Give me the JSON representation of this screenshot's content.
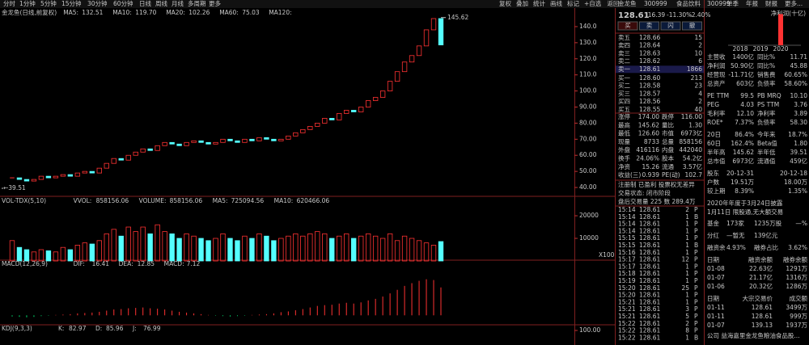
{
  "toolbar": {
    "periods": [
      "分时",
      "1分钟",
      "5分钟",
      "15分钟",
      "30分钟",
      "60分钟",
      "日线",
      "周线",
      "月线",
      "多周期",
      "更多"
    ],
    "tools": [
      "复权",
      "叠加",
      "统计",
      "画线",
      "标记",
      "+自选",
      "返回"
    ]
  },
  "chart_data": [
    {
      "type": "candlestick",
      "title": "金龙鱼(日线,前复权)",
      "indicators": [
        {
          "name": "MA5:",
          "value": "132.51",
          "color": "#e0e0e0"
        },
        {
          "name": "MA10:",
          "value": "119.70",
          "color": "#e8e800"
        },
        {
          "name": "MA20:",
          "value": "102.26",
          "color": "#ff40ff"
        },
        {
          "name": "MA60:",
          "value": "75.03",
          "color": "#00e070"
        },
        {
          "name": "MA120:",
          "value": "",
          "color": "#4080ff"
        }
      ],
      "values": [
        46,
        45,
        44,
        45,
        47,
        46,
        47,
        48,
        47,
        49,
        50,
        49,
        52,
        55,
        58,
        57,
        60,
        62,
        64,
        63,
        66,
        68,
        67,
        66,
        68,
        69,
        68,
        67,
        68,
        70,
        69,
        68,
        70,
        69,
        71,
        70,
        69,
        70,
        72,
        74,
        76,
        78,
        80,
        83,
        82,
        86,
        88,
        87,
        90,
        94,
        96,
        100,
        106,
        112,
        118,
        122,
        128,
        138,
        145,
        128.61
      ],
      "up_color": "#ff3232",
      "down_color": "#54ffff",
      "ylim": [
        35,
        145.5
      ],
      "yticks": [
        {
          "value": 40,
          "label": "40.00"
        },
        {
          "value": 50,
          "label": "50.00"
        },
        {
          "value": 60,
          "label": "60.00"
        },
        {
          "value": 70,
          "label": "70.00"
        },
        {
          "value": 80,
          "label": "80.00"
        },
        {
          "value": 90,
          "label": "90.00"
        },
        {
          "value": 100,
          "label": "100.0"
        },
        {
          "value": 110,
          "label": "110.0"
        },
        {
          "value": 120,
          "label": "120.0"
        },
        {
          "value": 130,
          "label": "130.0"
        },
        {
          "value": 140,
          "label": "140.0"
        }
      ],
      "high": 145.62,
      "low": {
        "value": 39.51,
        "label": "←39.51"
      }
    },
    {
      "type": "bar",
      "title": "VOL-TDX(5,10)",
      "indicators": [
        {
          "name": "VVOL:",
          "value": "858156.06",
          "color": "#e0e0e0"
        },
        {
          "name": "VOLUME:",
          "value": "858156.06",
          "color": "#e8e800"
        },
        {
          "name": "MA5:",
          "value": "725094.56",
          "color": "#e8e800"
        },
        {
          "name": "MA10:",
          "value": "620466.06",
          "color": "#ff40ff"
        }
      ],
      "values": [
        9000,
        6000,
        5000,
        4000,
        5000,
        4500,
        4000,
        6000,
        5000,
        7000,
        8000,
        7500,
        9000,
        12000,
        14000,
        11000,
        15000,
        13000,
        15000,
        12000,
        16000,
        13000,
        12000,
        10000,
        12000,
        11000,
        10000,
        9000,
        10000,
        12000,
        10000,
        9000,
        11000,
        10000,
        12000,
        11000,
        9000,
        10000,
        11000,
        12000,
        11000,
        12000,
        13000,
        12000,
        10000,
        11000,
        12000,
        10000,
        11000,
        12000,
        11000,
        10000,
        12000,
        9000,
        11000,
        10000,
        9000,
        8000,
        7000,
        8581.56
      ],
      "unit": "X100",
      "ylim": [
        0,
        24300
      ],
      "yticks": [
        10000,
        20000
      ]
    },
    {
      "type": "bar",
      "title": "MACD(12,26,9)",
      "indicators": [
        {
          "name": "DIF:",
          "value": "16.41",
          "color": "#e0e0e0"
        },
        {
          "name": "DEA:",
          "value": "12.85",
          "color": "#e8e800"
        },
        {
          "name": "MACD:",
          "value": "7.12",
          "color": "#ff40ff"
        }
      ],
      "values": [
        -0.3,
        -0.4,
        -0.5,
        -0.4,
        -0.2,
        -0.1,
        0.1,
        0.2,
        0.3,
        0.5,
        0.6,
        0.7,
        0.9,
        1.2,
        1.5,
        1.6,
        1.8,
        1.9,
        2.0,
        1.8,
        1.7,
        1.5,
        1.2,
        0.9,
        0.7,
        0.5,
        0.3,
        0.1,
        -0.1,
        -0.2,
        -0.3,
        -0.2,
        -0.1,
        0.1,
        0.2,
        0.3,
        0.5,
        0.8,
        1.0,
        1.3,
        1.6,
        2.0,
        2.4,
        2.6,
        2.7,
        3.0,
        3.2,
        3.0,
        3.3,
        3.8,
        4.2,
        4.8,
        5.6,
        6.5,
        7.5,
        8.2,
        8.8,
        9.2,
        9.0,
        7.12
      ],
      "ylim": [
        -2,
        12
      ]
    },
    {
      "type": "indicator",
      "title": "KDJ(9,3,3)",
      "indicators": [
        {
          "name": "K:",
          "value": "82.97",
          "color": "#e0e0e0"
        },
        {
          "name": "D:",
          "value": "85.96",
          "color": "#e8e800"
        },
        {
          "name": "J:",
          "value": "76.99",
          "color": "#ff40ff"
        }
      ],
      "ylim": [
        40,
        110
      ],
      "yticks": [
        {
          "value": 100,
          "label": "100.00"
        }
      ]
    }
  ],
  "quote": {
    "name": "金龙鱼",
    "code": "300999",
    "industry": "食品饮料",
    "price": "128.61",
    "change": "-16.39",
    "pct": "-11.30%",
    "rel": "-2.40%",
    "buttons": [
      "买",
      "卖",
      "闪",
      "撤"
    ],
    "book": [
      [
        "卖五",
        "128.66",
        "15"
      ],
      [
        "卖四",
        "128.64",
        "2"
      ],
      [
        "卖三",
        "128.63",
        "10"
      ],
      [
        "卖二",
        "128.62",
        "6"
      ],
      [
        "卖一",
        "128.61",
        "1866"
      ],
      [
        "买一",
        "128.60",
        "213"
      ],
      [
        "买二",
        "128.58",
        "23"
      ],
      [
        "买三",
        "128.57",
        "4"
      ],
      [
        "买四",
        "128.56",
        "2"
      ],
      [
        "买五",
        "128.55",
        "40"
      ]
    ],
    "stats": [
      [
        "涨停",
        "174.00",
        "跌停",
        "116.00"
      ],
      [
        "最高",
        "145.62",
        "量比",
        "1.30"
      ],
      [
        "最低",
        "126.60",
        "市值",
        "6973亿"
      ],
      [
        "现量",
        "8733",
        "总量",
        "858156"
      ],
      [
        "外盘",
        "416116",
        "内盘",
        "442040"
      ],
      [
        "换手",
        "24.06%",
        "股本",
        "54.2亿"
      ],
      [
        "净资",
        "15.26",
        "流通",
        "3.57亿"
      ],
      [
        "收益(三)",
        "0.939",
        "PE(动)",
        "102.7"
      ]
    ],
    "notes": [
      "注册制 已盈利 投票权无差异",
      "交易状态: 闭市阶段",
      "盘后交易量 225 数 289.4万"
    ],
    "ticks": [
      [
        "15:14",
        "128.61",
        "2",
        "P"
      ],
      [
        "15:14",
        "128.61",
        "1",
        "B"
      ],
      [
        "15:14",
        "128.61",
        "1",
        "P"
      ],
      [
        "15:14",
        "128.61",
        "1",
        "P"
      ],
      [
        "15:15",
        "128.61",
        "1",
        "P"
      ],
      [
        "15:15",
        "128.61",
        "1",
        "B"
      ],
      [
        "15:16",
        "128.61",
        "1",
        "P"
      ],
      [
        "15:17",
        "128.61",
        "12",
        "P"
      ],
      [
        "15:17",
        "128.61",
        "1",
        "P"
      ],
      [
        "15:18",
        "128.61",
        "1",
        "P"
      ],
      [
        "15:19",
        "128.61",
        "1",
        "P"
      ],
      [
        "15:20",
        "128.61",
        "25",
        "P"
      ],
      [
        "15:20",
        "128.61",
        "1",
        "P"
      ],
      [
        "15:21",
        "128.61",
        "1",
        "P"
      ],
      [
        "15:21",
        "128.61",
        "3",
        "P"
      ],
      [
        "15:21",
        "128.61",
        "5",
        "P"
      ],
      [
        "15:22",
        "128.61",
        "2",
        "P"
      ],
      [
        "15:22",
        "128.61",
        "8",
        "P"
      ],
      [
        "15:22",
        "128.61",
        "1",
        "B"
      ]
    ]
  },
  "f10": {
    "code": "300999",
    "tabs": [
      "单季",
      "年报",
      "财报",
      "更多..."
    ],
    "profit_chart": {
      "type": "bar",
      "title": "净利润(十亿)",
      "categories": [
        "2018",
        "2019",
        "2020"
      ],
      "values": [
        null,
        null,
        4.588
      ],
      "color": "#ff3232",
      "ylim": [
        0,
        5
      ]
    },
    "fundamentals": [
      [
        "主营收",
        "1400亿",
        "同比%",
        "11.71"
      ],
      [
        "净利润",
        "50.90亿",
        "同比%",
        "45.88"
      ],
      [
        "经营现",
        "-11.71亿",
        "销售费",
        "60.65%"
      ],
      [
        "总资产",
        "603亿",
        "负债率",
        "58.60%"
      ],
      [
        "PE TTM",
        "99.5",
        "PB MRQ",
        "10.10"
      ],
      [
        "PEG",
        "4.03",
        "PS TTM",
        "3.76"
      ],
      [
        "毛利率",
        "12.10",
        "净利率",
        "3.89"
      ],
      [
        "ROE*",
        "7.37%",
        "负债率",
        "58.30"
      ],
      [
        "20日",
        "86.4%",
        "今年来",
        "18.7%"
      ],
      [
        "60日",
        "162.4%",
        "Beta值",
        "1.80"
      ],
      [
        "半年高",
        "145.62",
        "半年低",
        "39.51"
      ],
      [
        "总市值",
        "6973亿",
        "流通值",
        "459亿"
      ],
      [
        "股东",
        "20-12-31",
        "",
        "20-12-18"
      ],
      [
        "户数",
        "19.51万",
        "",
        "18.00万"
      ],
      [
        "较上期",
        "8.39%",
        "",
        "1.35%"
      ]
    ],
    "notices": [
      "2020年年度于3月24日披露",
      "1月11日 限股通,无大额交易"
    ],
    "misc": [
      [
        "基金",
        "173家",
        "1235万股",
        "—%"
      ],
      [
        "分红",
        "—暂无",
        "139亿元",
        ""
      ],
      [
        "融资余",
        "4.93%",
        "融券占比",
        "3.62%"
      ]
    ],
    "margin": {
      "header": [
        "日期",
        "融资余额",
        "融券余额"
      ],
      "rows": [
        [
          "01-08",
          "22.63亿",
          "1291万"
        ],
        [
          "01-07",
          "21.17亿",
          "1316万"
        ],
        [
          "01-06",
          "20.32亿",
          "1286万"
        ]
      ]
    },
    "block": {
      "header": [
        "日期",
        "大宗交易价",
        "成交额"
      ],
      "rows": [
        [
          "01-11",
          "128.61",
          "3499万"
        ],
        [
          "01-11",
          "128.61",
          "999万"
        ],
        [
          "01-07",
          "139.13",
          "1937万"
        ]
      ]
    },
    "company": "公司 益海嘉里金龙鱼粮油食品股..."
  }
}
